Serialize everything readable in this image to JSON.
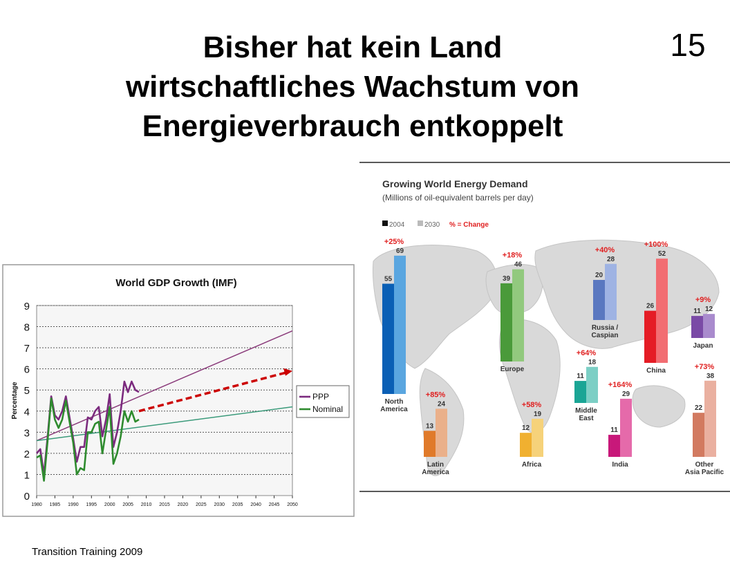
{
  "slide": {
    "title_lines": [
      "Bisher hat kein Land",
      "wirtschaftliches Wachstum von",
      "Energieverbrauch entkoppelt"
    ],
    "number": "15",
    "footer": "Transition Training 2009"
  },
  "chart_data": [
    {
      "type": "line",
      "title": "World GDP Growth (IMF)",
      "xlabel": "",
      "ylabel": "Percentage",
      "xlim": [
        1980,
        2050
      ],
      "ylim": [
        0,
        9
      ],
      "x_ticks": [
        "1980",
        "1985",
        "1990",
        "1995",
        "2000",
        "2005",
        "2010",
        "2015",
        "2020",
        "2025",
        "2030",
        "2035",
        "2040",
        "2045",
        "2050"
      ],
      "y_ticks": [
        "0",
        "1",
        "2",
        "3",
        "4",
        "5",
        "6",
        "7",
        "8",
        "9"
      ],
      "grid": true,
      "legend_position": "right",
      "series": [
        {
          "name": "PPP",
          "color": "#7b2a7e",
          "x": [
            1980,
            1981,
            1982,
            1983,
            1984,
            1985,
            1986,
            1987,
            1988,
            1989,
            1990,
            1991,
            1992,
            1993,
            1994,
            1995,
            1996,
            1997,
            1998,
            1999,
            2000,
            2001,
            2002,
            2003,
            2004,
            2005,
            2006,
            2007,
            2008
          ],
          "y": [
            2.0,
            2.2,
            1.0,
            2.8,
            4.7,
            3.8,
            3.6,
            4.0,
            4.7,
            3.7,
            2.7,
            1.6,
            2.3,
            2.3,
            3.7,
            3.6,
            4.0,
            4.2,
            2.8,
            3.6,
            4.8,
            2.3,
            3.0,
            4.0,
            5.4,
            4.9,
            5.4,
            5.0,
            4.9
          ]
        },
        {
          "name": "Nominal",
          "color": "#2e8b2e",
          "x": [
            1980,
            1981,
            1982,
            1983,
            1984,
            1985,
            1986,
            1987,
            1988,
            1989,
            1990,
            1991,
            1992,
            1993,
            1994,
            1995,
            1996,
            1997,
            1998,
            1999,
            2000,
            2001,
            2002,
            2003,
            2004,
            2005,
            2006,
            2007,
            2008
          ],
          "y": [
            1.8,
            1.9,
            0.7,
            2.6,
            4.6,
            3.6,
            3.2,
            3.6,
            4.5,
            3.5,
            2.5,
            1.0,
            1.3,
            1.2,
            3.0,
            3.0,
            3.4,
            3.5,
            2.0,
            3.1,
            4.2,
            1.5,
            2.0,
            2.8,
            4.0,
            3.5,
            4.0,
            3.5,
            3.6
          ]
        }
      ],
      "trend_lines": [
        {
          "color": "#8a3a7a",
          "x": [
            1980,
            2050
          ],
          "y": [
            2.6,
            7.8
          ]
        },
        {
          "color": "#3a9a7a",
          "x": [
            1980,
            2050
          ],
          "y": [
            2.6,
            4.2
          ]
        }
      ],
      "projection": {
        "color": "#cc0000",
        "x": [
          2008,
          2050
        ],
        "y": [
          4.0,
          5.9
        ]
      }
    },
    {
      "type": "bar",
      "title": "Growing World Energy Demand",
      "subtitle": "(Millions of oil-equivalent barrels per day)",
      "legend": [
        "2004",
        "2030",
        "% = Change"
      ],
      "legend_colors": [
        "#111111",
        "#bbbbbb",
        "#e02020"
      ],
      "regions": [
        {
          "name_lines": [
            "North",
            "America"
          ],
          "v2004": 55,
          "v2030": 69,
          "change": "+25%",
          "c2004": "#0a5fb5",
          "c2030": "#5aa6e0"
        },
        {
          "name_lines": [
            "Europe"
          ],
          "v2004": 39,
          "v2030": 46,
          "change": "+18%",
          "c2004": "#4a9a3a",
          "c2030": "#92c97e"
        },
        {
          "name_lines": [
            "Russia /",
            "Caspian"
          ],
          "v2004": 20,
          "v2030": 28,
          "change": "+40%",
          "c2004": "#5a78c0",
          "c2030": "#9fb3e3"
        },
        {
          "name_lines": [
            "China"
          ],
          "v2004": 26,
          "v2030": 52,
          "change": "+100%",
          "c2004": "#e51c25",
          "c2030": "#f26d72"
        },
        {
          "name_lines": [
            "Japan"
          ],
          "v2004": 11,
          "v2030": 12,
          "change": "+9%",
          "c2004": "#7a4aa6",
          "c2030": "#a98bcd"
        },
        {
          "name_lines": [
            "Latin",
            "America"
          ],
          "v2004": 13,
          "v2030": 24,
          "change": "+85%",
          "c2004": "#e07a2a",
          "c2030": "#eab08a"
        },
        {
          "name_lines": [
            "Africa"
          ],
          "v2004": 12,
          "v2030": 19,
          "change": "+58%",
          "c2004": "#f0b030",
          "c2030": "#f6d27a"
        },
        {
          "name_lines": [
            "Middle",
            "East"
          ],
          "v2004": 11,
          "v2030": 18,
          "change": "+64%",
          "c2004": "#1aa595",
          "c2030": "#7ccfc5"
        },
        {
          "name_lines": [
            "India"
          ],
          "v2004": 11,
          "v2030": 29,
          "change": "+164%",
          "c2004": "#c8187a",
          "c2030": "#e56aaa"
        },
        {
          "name_lines": [
            "Other",
            "Asia Pacific"
          ],
          "v2004": 22,
          "v2030": 38,
          "change": "+73%",
          "c2004": "#d27a60",
          "c2030": "#eab0a0"
        }
      ]
    }
  ]
}
